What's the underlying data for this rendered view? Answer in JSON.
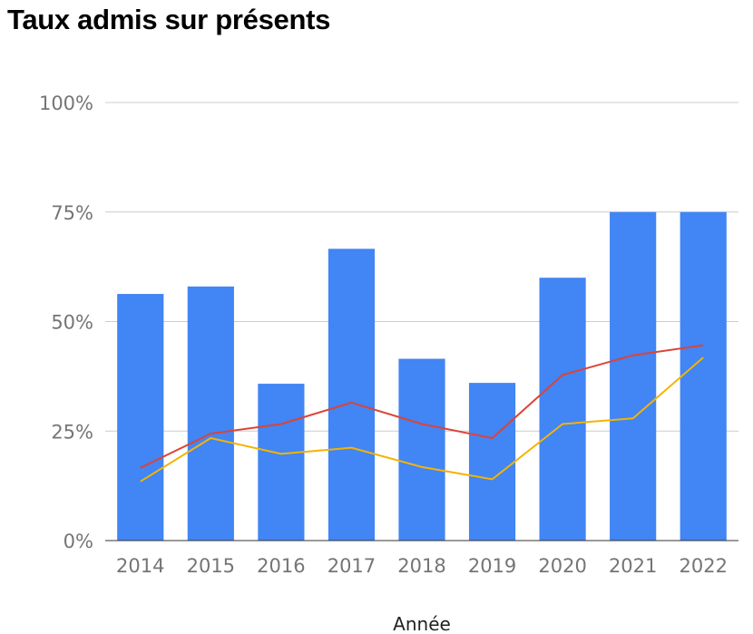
{
  "chart_data": {
    "type": "bar",
    "title": "Taux admis sur présents",
    "xlabel": "Année",
    "ylabel": "",
    "categories": [
      "2014",
      "2015",
      "2016",
      "2017",
      "2018",
      "2019",
      "2020",
      "2021",
      "2022"
    ],
    "ylim": [
      0,
      100
    ],
    "yticks": [
      "0%",
      "25%",
      "50%",
      "75%",
      "100%"
    ],
    "grid": true,
    "legend": "none",
    "series": [
      {
        "type": "bar",
        "color": "#4285f4",
        "values": [
          56.3,
          58.0,
          35.8,
          66.6,
          41.5,
          36.0,
          60.0,
          75.0,
          75.0
        ]
      },
      {
        "type": "line",
        "color": "#db4437",
        "values": [
          16.6,
          24.4,
          26.6,
          31.5,
          26.6,
          23.4,
          37.8,
          42.3,
          44.6
        ]
      },
      {
        "type": "line",
        "color": "#f4b400",
        "values": [
          13.5,
          23.4,
          19.8,
          21.2,
          16.8,
          14.0,
          26.6,
          27.9,
          41.8
        ]
      }
    ]
  }
}
